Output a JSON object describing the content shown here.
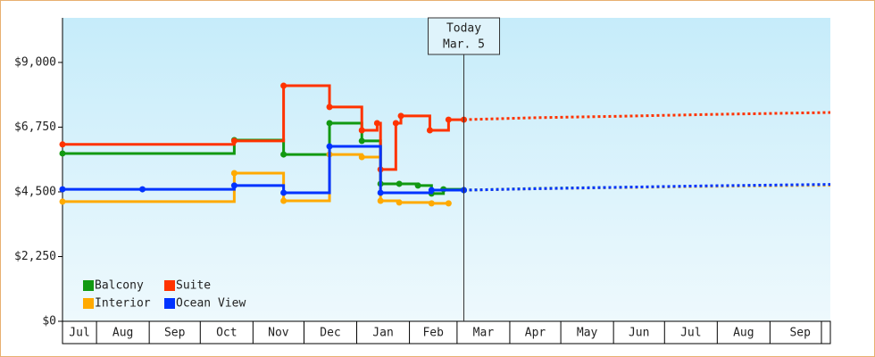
{
  "chart_data": {
    "type": "line",
    "step": true,
    "xlim": [
      11,
      462.5
    ],
    "xticks": [
      {
        "value": 0,
        "label": "Jul"
      },
      {
        "value": 31,
        "label": "Aug"
      },
      {
        "value": 62,
        "label": "Sep"
      },
      {
        "value": 92,
        "label": "Oct"
      },
      {
        "value": 123,
        "label": "Nov"
      },
      {
        "value": 153,
        "label": "Dec"
      },
      {
        "value": 184,
        "label": "Jan"
      },
      {
        "value": 215,
        "label": "Feb"
      },
      {
        "value": 243,
        "label": "Mar"
      },
      {
        "value": 274,
        "label": "Apr"
      },
      {
        "value": 304,
        "label": "May"
      },
      {
        "value": 335,
        "label": "Jun"
      },
      {
        "value": 365,
        "label": "Jul"
      },
      {
        "value": 396,
        "label": "Aug"
      },
      {
        "value": 427,
        "label": "Sep"
      }
    ],
    "ylim": [
      0,
      10550
    ],
    "yticks": [
      {
        "value": 0,
        "label": "$0"
      },
      {
        "value": 2250,
        "label": "$2,250"
      },
      {
        "value": 4500,
        "label": "$4,500"
      },
      {
        "value": 6750,
        "label": "$6,750"
      },
      {
        "value": 9000,
        "label": "$9,000"
      }
    ],
    "legend": "bottom-left",
    "annotation": {
      "x": 247,
      "lines": [
        "Today",
        "Mar. 5"
      ]
    },
    "series": [
      {
        "name": "Balcony",
        "color": "#119911",
        "x": [
          11,
          112,
          141,
          168,
          187,
          198,
          209,
          220,
          228,
          235,
          247
        ],
        "values": [
          5835,
          6300,
          5800,
          6890,
          6270,
          4780,
          4780,
          4720,
          4440,
          4590,
          4560
        ],
        "forecast": {
          "x": [
            247,
            290,
            340,
            390,
            462.5
          ],
          "values": [
            4560,
            4620,
            4660,
            4700,
            4750
          ]
        }
      },
      {
        "name": "Suite",
        "color": "#ff3300",
        "x": [
          11,
          112,
          141,
          168,
          187,
          196,
          198,
          207,
          210,
          227,
          238,
          247
        ],
        "values": [
          6150,
          6270,
          8190,
          7450,
          6640,
          6890,
          5280,
          6890,
          7140,
          6640,
          7010,
          7010
        ],
        "forecast": {
          "x": [
            247,
            290,
            340,
            390,
            462.5
          ],
          "values": [
            7010,
            7080,
            7130,
            7190,
            7260
          ]
        }
      },
      {
        "name": "Interior",
        "color": "#ffaa00",
        "x": [
          11,
          112,
          141,
          168,
          187,
          198,
          209,
          228,
          238
        ],
        "values": [
          4160,
          5150,
          4190,
          5800,
          5710,
          4190,
          4130,
          4100,
          4100
        ],
        "forecast": {
          "x": [
            247,
            290,
            340,
            390,
            462.5
          ],
          "values": [
            4560,
            4610,
            4650,
            4690,
            4730
          ]
        }
      },
      {
        "name": "Ocean View",
        "color": "#0033ff",
        "x": [
          11,
          58,
          112,
          141,
          168,
          198,
          228,
          247
        ],
        "values": [
          4590,
          4590,
          4720,
          4470,
          6080,
          4470,
          4560,
          4560
        ],
        "forecast": {
          "x": [
            247,
            290,
            340,
            390,
            462.5
          ],
          "values": [
            4560,
            4610,
            4660,
            4710,
            4760
          ]
        }
      }
    ]
  }
}
